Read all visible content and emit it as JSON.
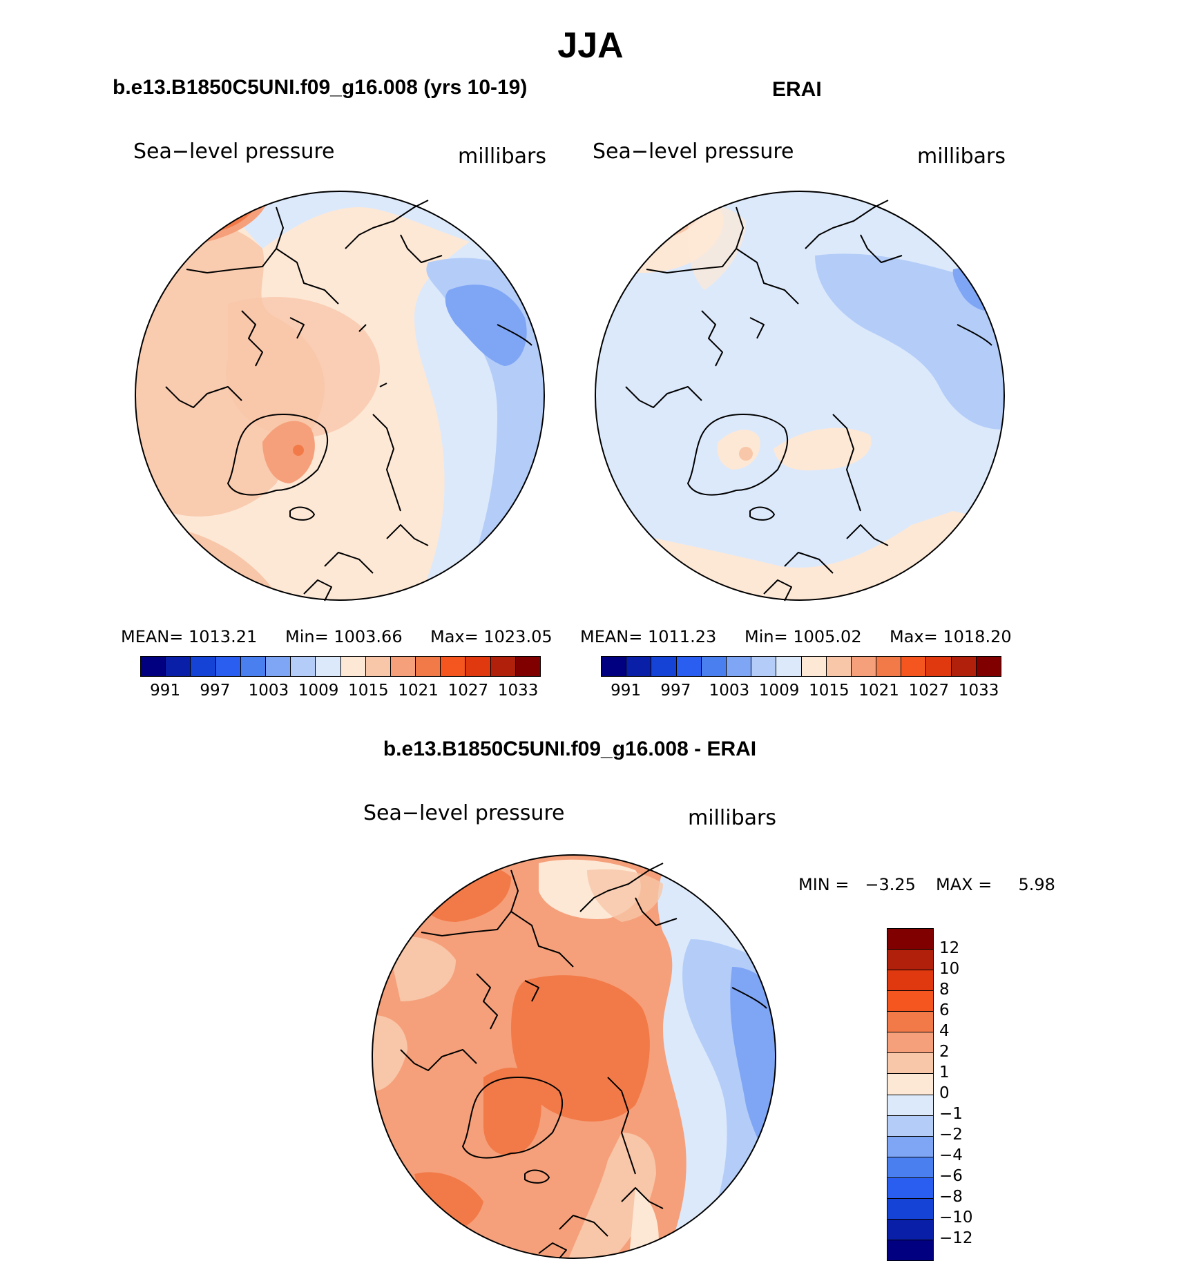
{
  "figure_title": "JJA",
  "panels": [
    {
      "heading": "b.e13.B1850C5UNI.f09_g16.008 (yrs 10-19)",
      "variable": "Sea−level pressure",
      "units": "millibars",
      "stats": {
        "mean_label": "MEAN=",
        "mean": "1013.21",
        "min_label": "Min=",
        "min": "1003.66",
        "max_label": "Max=",
        "max": "1023.05"
      }
    },
    {
      "heading": "ERAI",
      "variable": "Sea−level pressure",
      "units": "millibars",
      "stats": {
        "mean_label": "MEAN=",
        "mean": "1011.23",
        "min_label": "Min=",
        "min": "1005.02",
        "max_label": "Max=",
        "max": "1018.20"
      }
    },
    {
      "heading": "b.e13.B1850C5UNI.f09_g16.008 - ERAI",
      "variable": "Sea−level pressure",
      "units": "millibars",
      "stats": {
        "min_label": "MIN =",
        "min": "−3.25",
        "max_label": "MAX =",
        "max": "5.98"
      }
    }
  ],
  "colorbar_abs": {
    "colors": [
      "#000080",
      "#0a1fa8",
      "#1543d6",
      "#2a5ef0",
      "#4a7ff0",
      "#7fa5f5",
      "#b4cdf8",
      "#dce9fb",
      "#fde8d6",
      "#f8c6a8",
      "#f5a07a",
      "#f27a48",
      "#f5551e",
      "#e0380f",
      "#b0200a",
      "#800000"
    ],
    "labels": [
      "991",
      "997",
      "1003",
      "1009",
      "1015",
      "1021",
      "1027",
      "1033"
    ]
  },
  "colorbar_diff": {
    "colors": [
      "#800000",
      "#b0200a",
      "#e0380f",
      "#f5551e",
      "#f27a48",
      "#f5a07a",
      "#f8c6a8",
      "#fde8d6",
      "#dce9fb",
      "#b4cdf8",
      "#7fa5f5",
      "#4a7ff0",
      "#2a5ef0",
      "#1543d6",
      "#0a1fa8",
      "#000080"
    ],
    "labels": [
      "12",
      "10",
      "8",
      "6",
      "4",
      "2",
      "1",
      "0",
      "−1",
      "−2",
      "−4",
      "−6",
      "−8",
      "−10",
      "−12"
    ]
  }
}
